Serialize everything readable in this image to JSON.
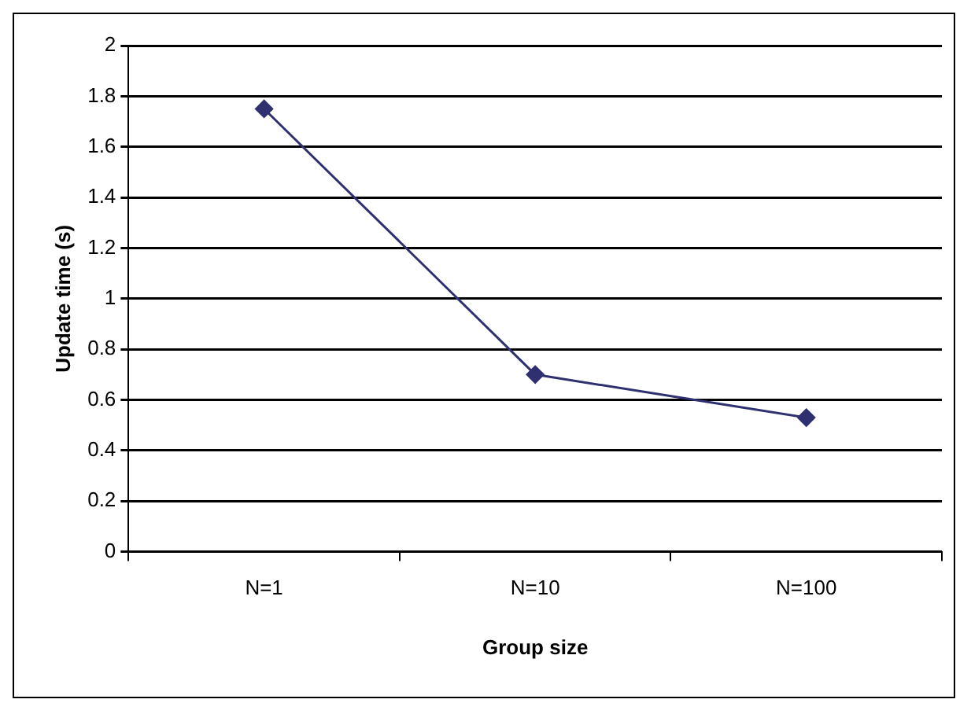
{
  "chart_data": {
    "type": "line",
    "xlabel": "Group size",
    "ylabel": "Update time (s)",
    "categories": [
      "N=1",
      "N=10",
      "N=100"
    ],
    "series": [
      {
        "color": "#2e3070",
        "values": [
          1.75,
          0.7,
          0.53
        ]
      }
    ],
    "ylim": [
      0,
      2
    ],
    "yticks": [
      0,
      0.2,
      0.4,
      0.6,
      0.8,
      1,
      1.2,
      1.4,
      1.6,
      1.8,
      2
    ],
    "grid": "y",
    "legend": false,
    "marker": "diamond",
    "line_style": "solid"
  }
}
